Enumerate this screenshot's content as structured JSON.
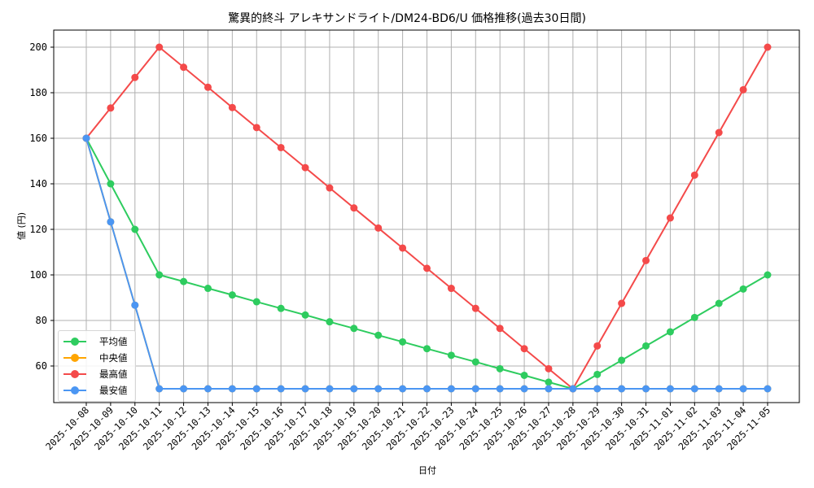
{
  "chart_data": {
    "type": "line",
    "title": "驚異的終斗 アレキサンドライト/DM24-BD6/U 価格推移(過去30日間)",
    "xlabel": "日付",
    "ylabel": "値 (円)",
    "ylim": [
      43,
      207
    ],
    "yticks": [
      60,
      80,
      100,
      120,
      140,
      160,
      180,
      200
    ],
    "grid": true,
    "legend_position": "lower left",
    "categories": [
      "2025-10-08",
      "2025-10-09",
      "2025-10-10",
      "2025-10-11",
      "2025-10-12",
      "2025-10-13",
      "2025-10-14",
      "2025-10-15",
      "2025-10-16",
      "2025-10-17",
      "2025-10-18",
      "2025-10-19",
      "2025-10-20",
      "2025-10-21",
      "2025-10-22",
      "2025-10-23",
      "2025-10-24",
      "2025-10-25",
      "2025-10-26",
      "2025-10-27",
      "2025-10-28",
      "2025-10-29",
      "2025-10-30",
      "2025-10-31",
      "2025-11-01",
      "2025-11-02",
      "2025-11-03",
      "2025-11-04",
      "2025-11-05"
    ],
    "series": [
      {
        "name": "平均値",
        "color": "#2ecc5f",
        "values": [
          160,
          140,
          120,
          100,
          97.1,
          94.1,
          91.2,
          88.2,
          85.3,
          82.4,
          79.4,
          76.5,
          73.5,
          70.6,
          67.6,
          64.7,
          61.8,
          58.8,
          55.9,
          52.9,
          50,
          56.3,
          62.5,
          68.8,
          75,
          81.3,
          87.5,
          93.8,
          100
        ]
      },
      {
        "name": "中央値",
        "color": "#ffa500",
        "values": [
          160,
          123.3,
          86.7,
          50,
          50,
          50,
          50,
          50,
          50,
          50,
          50,
          50,
          50,
          50,
          50,
          50,
          50,
          50,
          50,
          50,
          50,
          50,
          50,
          50,
          50,
          50,
          50,
          50,
          50
        ]
      },
      {
        "name": "最高値",
        "color": "#f44a4a",
        "values": [
          160,
          173.3,
          186.7,
          200,
          191.2,
          182.4,
          173.5,
          164.7,
          155.9,
          147.1,
          138.2,
          129.4,
          120.6,
          111.8,
          102.9,
          94.1,
          85.3,
          76.5,
          67.6,
          58.8,
          50,
          68.8,
          87.5,
          106.3,
          125,
          143.8,
          162.5,
          181.3,
          200
        ]
      },
      {
        "name": "最安値",
        "color": "#4b96f3",
        "values": [
          160,
          123.3,
          86.7,
          50,
          50,
          50,
          50,
          50,
          50,
          50,
          50,
          50,
          50,
          50,
          50,
          50,
          50,
          50,
          50,
          50,
          50,
          50,
          50,
          50,
          50,
          50,
          50,
          50,
          50
        ]
      }
    ]
  }
}
